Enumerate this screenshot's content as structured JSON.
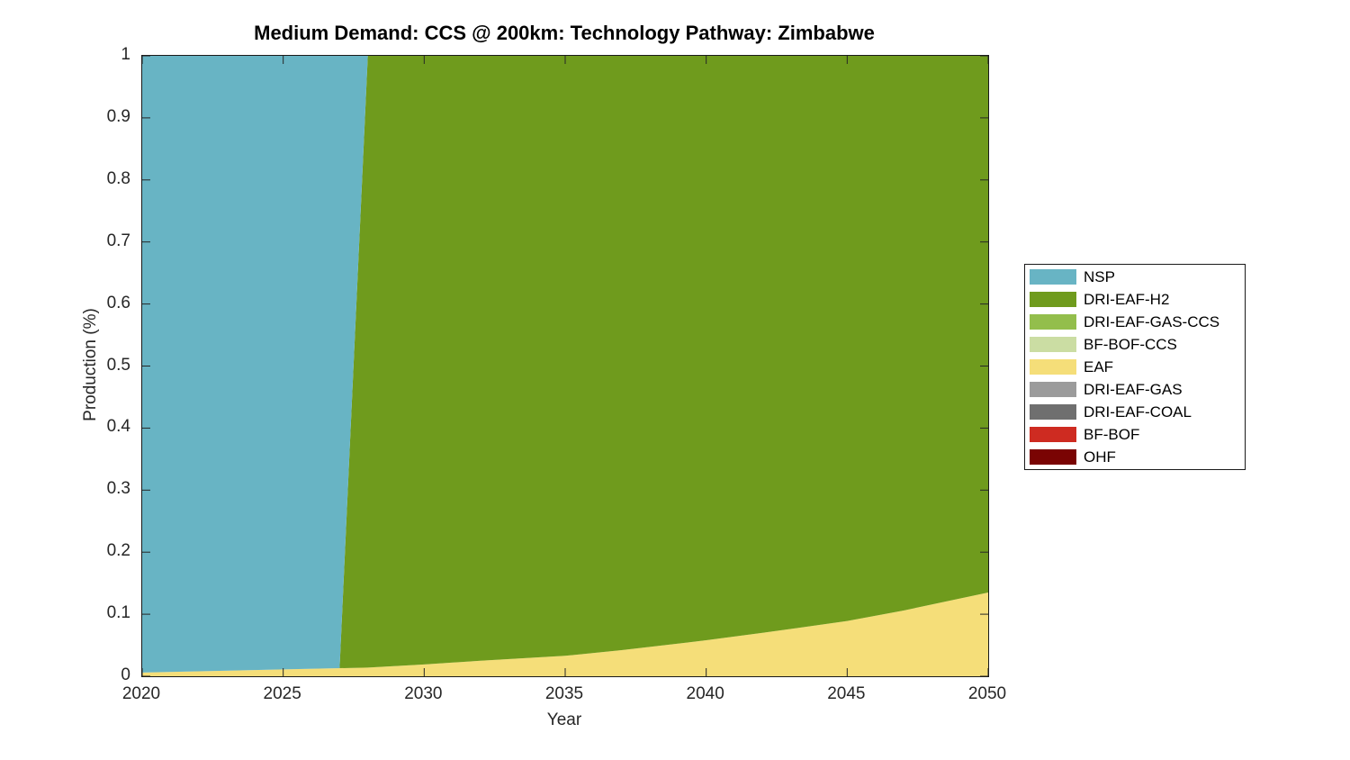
{
  "figure": {
    "title": "Medium Demand: CCS @ 200km: Technology Pathway: Zimbabwe",
    "background_color": "#FFFFFF",
    "axes_color": "#262626"
  },
  "axes": {
    "xlabel": "Year",
    "ylabel": "Production (%)",
    "xlim": [
      2020,
      2050
    ],
    "ylim": [
      0,
      1
    ],
    "xticks": [
      {
        "value": 2020,
        "label": "2020"
      },
      {
        "value": 2025,
        "label": "2025"
      },
      {
        "value": 2030,
        "label": "2030"
      },
      {
        "value": 2035,
        "label": "2035"
      },
      {
        "value": 2040,
        "label": "2040"
      },
      {
        "value": 2045,
        "label": "2045"
      },
      {
        "value": 2050,
        "label": "2050"
      }
    ],
    "yticks": [
      {
        "value": 0,
        "label": "0"
      },
      {
        "value": 0.1,
        "label": "0.1"
      },
      {
        "value": 0.2,
        "label": "0.2"
      },
      {
        "value": 0.3,
        "label": "0.3"
      },
      {
        "value": 0.4,
        "label": "0.4"
      },
      {
        "value": 0.5,
        "label": "0.5"
      },
      {
        "value": 0.6,
        "label": "0.6"
      },
      {
        "value": 0.7,
        "label": "0.7"
      },
      {
        "value": 0.8,
        "label": "0.8"
      },
      {
        "value": 0.9,
        "label": "0.9"
      },
      {
        "value": 1,
        "label": "1"
      }
    ],
    "tick_length": 9,
    "grid": false
  },
  "legend": {
    "position": "right-outside",
    "border_color": "#1a1a1a"
  },
  "chart_data": {
    "type": "area",
    "stacked": true,
    "title": "Medium Demand: CCS @ 200km: Technology Pathway: Zimbabwe",
    "xlabel": "Year",
    "ylabel": "Production (%)",
    "xlim": [
      2020,
      2050
    ],
    "ylim": [
      0,
      1
    ],
    "x": [
      2020,
      2022,
      2025,
      2027,
      2028,
      2030,
      2032,
      2035,
      2037,
      2040,
      2042,
      2045,
      2047,
      2050
    ],
    "stack_order": [
      "EAF",
      "DRI-EAF-H2",
      "NSP",
      "DRI-EAF-GAS-CCS",
      "BF-BOF-CCS",
      "DRI-EAF-GAS",
      "DRI-EAF-COAL",
      "BF-BOF",
      "OHF"
    ],
    "series": [
      {
        "name": "NSP",
        "color": "#68B4C4",
        "values": [
          0.994,
          0.992,
          0.989,
          0.987,
          0,
          0,
          0,
          0,
          0,
          0,
          0,
          0,
          0,
          0
        ]
      },
      {
        "name": "DRI-EAF-H2",
        "color": "#6F9B1D",
        "values": [
          0,
          0,
          0,
          0,
          0.986,
          0.981,
          0.975,
          0.967,
          0.958,
          0.942,
          0.93,
          0.911,
          0.894,
          0.865
        ]
      },
      {
        "name": "DRI-EAF-GAS-CCS",
        "color": "#93BE4C",
        "values": [
          0,
          0,
          0,
          0,
          0,
          0,
          0,
          0,
          0,
          0,
          0,
          0,
          0,
          0
        ]
      },
      {
        "name": "BF-BOF-CCS",
        "color": "#CBDDA3",
        "values": [
          0,
          0,
          0,
          0,
          0,
          0,
          0,
          0,
          0,
          0,
          0,
          0,
          0,
          0
        ]
      },
      {
        "name": "EAF",
        "color": "#F5DE79",
        "values": [
          0.006,
          0.008,
          0.011,
          0.013,
          0.014,
          0.019,
          0.025,
          0.033,
          0.042,
          0.058,
          0.07,
          0.089,
          0.106,
          0.135
        ]
      },
      {
        "name": "DRI-EAF-GAS",
        "color": "#9B9B9B",
        "values": [
          0,
          0,
          0,
          0,
          0,
          0,
          0,
          0,
          0,
          0,
          0,
          0,
          0,
          0
        ]
      },
      {
        "name": "DRI-EAF-COAL",
        "color": "#6F6F6F",
        "values": [
          0,
          0,
          0,
          0,
          0,
          0,
          0,
          0,
          0,
          0,
          0,
          0,
          0,
          0
        ]
      },
      {
        "name": "BF-BOF",
        "color": "#CE2B21",
        "values": [
          0,
          0,
          0,
          0,
          0,
          0,
          0,
          0,
          0,
          0,
          0,
          0,
          0,
          0
        ]
      },
      {
        "name": "OHF",
        "color": "#7A0403",
        "values": [
          0,
          0,
          0,
          0,
          0,
          0,
          0,
          0,
          0,
          0,
          0,
          0,
          0,
          0
        ]
      }
    ]
  }
}
